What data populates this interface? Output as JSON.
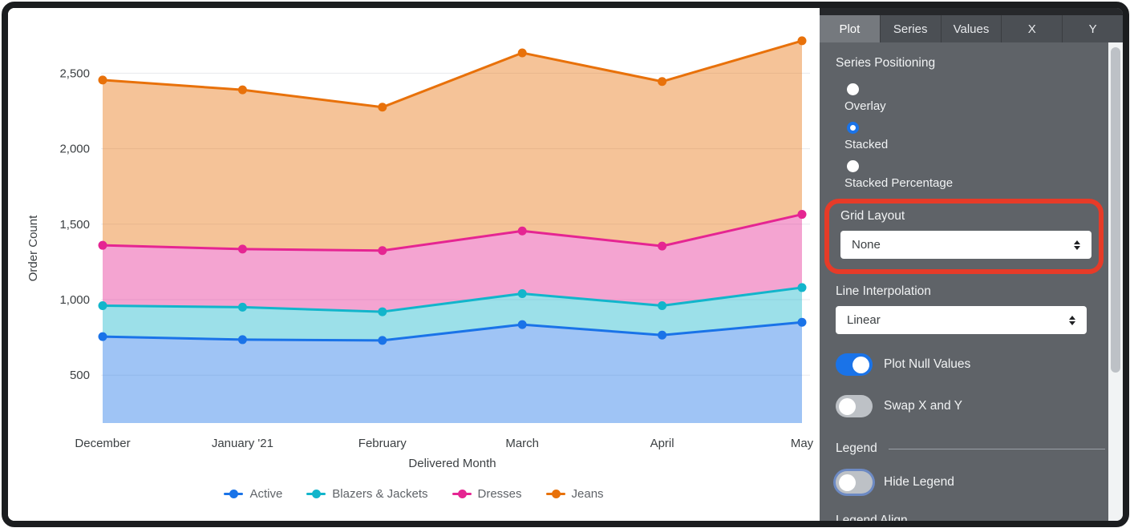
{
  "chart_data": {
    "type": "area",
    "stacked": true,
    "series_positioning": "Stacked",
    "xlabel": "Delivered Month",
    "ylabel": "Order Count",
    "categories": [
      "December",
      "January '21",
      "February",
      "March",
      "April",
      "May"
    ],
    "series": [
      {
        "name": "Active",
        "color": "#1a73e8",
        "values": [
          755,
          735,
          730,
          835,
          765,
          850
        ],
        "stacked_totals": [
          755,
          735,
          730,
          835,
          765,
          850
        ]
      },
      {
        "name": "Blazers & Jackets",
        "color": "#12b5cb",
        "values": [
          205,
          215,
          190,
          205,
          195,
          230
        ],
        "stacked_totals": [
          960,
          950,
          920,
          1040,
          960,
          1080
        ]
      },
      {
        "name": "Dresses",
        "color": "#e52592",
        "values": [
          400,
          385,
          405,
          415,
          395,
          485
        ],
        "stacked_totals": [
          1360,
          1335,
          1325,
          1455,
          1355,
          1565
        ]
      },
      {
        "name": "Jeans",
        "color": "#e8710a",
        "values": [
          1095,
          1055,
          950,
          1180,
          1090,
          1150
        ],
        "stacked_totals": [
          2455,
          2390,
          2275,
          2635,
          2445,
          2715
        ]
      }
    ],
    "y_ticks": [
      {
        "label": "500",
        "value": 500
      },
      {
        "label": "1,000",
        "value": 1000
      },
      {
        "label": "1,500",
        "value": 1500
      },
      {
        "label": "2,000",
        "value": 2000
      },
      {
        "label": "2,500",
        "value": 2500
      }
    ],
    "ylim": [
      180,
      2840
    ],
    "grid": true,
    "legend_position": "bottom"
  },
  "panel": {
    "tabs": [
      {
        "label": "Plot",
        "active": true
      },
      {
        "label": "Series",
        "active": false
      },
      {
        "label": "Values",
        "active": false
      },
      {
        "label": "X",
        "active": false
      },
      {
        "label": "Y",
        "active": false
      }
    ],
    "series_positioning": {
      "label": "Series Positioning",
      "options": [
        {
          "label": "Overlay",
          "selected": false
        },
        {
          "label": "Stacked",
          "selected": true
        },
        {
          "label": "Stacked Percentage",
          "selected": false
        }
      ]
    },
    "grid_layout": {
      "label": "Grid Layout",
      "value": "None",
      "highlighted": true
    },
    "line_interpolation": {
      "label": "Line Interpolation",
      "value": "Linear"
    },
    "plot_null_values": {
      "label": "Plot Null Values",
      "on": true
    },
    "swap_x_y": {
      "label": "Swap X and Y",
      "on": false
    },
    "legend_section": {
      "header": "Legend",
      "hide_legend": {
        "label": "Hide Legend",
        "on": false,
        "focused": true
      },
      "legend_align_label": "Legend Align"
    },
    "annotation_color": "#e73b28",
    "accent_color": "#1a73e8"
  }
}
